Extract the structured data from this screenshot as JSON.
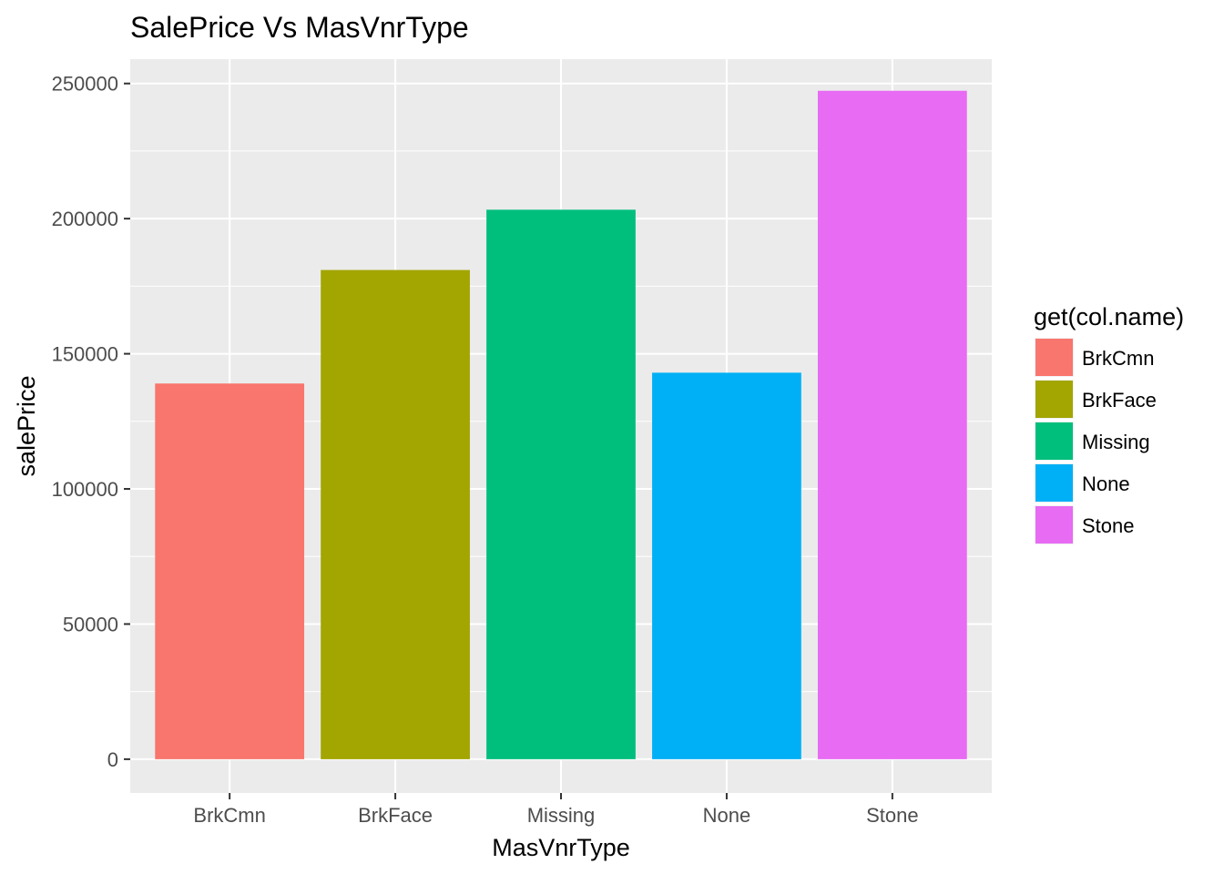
{
  "chart_data": {
    "type": "bar",
    "title": "SalePrice Vs MasVnrType",
    "xlabel": "MasVnrType",
    "ylabel": "salePrice",
    "categories": [
      "BrkCmn",
      "BrkFace",
      "Missing",
      "None",
      "Stone"
    ],
    "values": [
      139000,
      181000,
      203300,
      143000,
      247300
    ],
    "colors": [
      "#F8766D",
      "#A3A500",
      "#00BF7D",
      "#00B0F6",
      "#E76BF3"
    ],
    "ylim": [
      -12500,
      259000
    ],
    "yticks": [
      0,
      50000,
      100000,
      150000,
      200000,
      250000
    ],
    "ytick_labels": [
      "0",
      "50000",
      "100000",
      "150000",
      "200000",
      "250000"
    ],
    "grid": true,
    "legend": {
      "title": "get(col.name)",
      "position": "right",
      "entries": [
        "BrkCmn",
        "BrkFace",
        "Missing",
        "None",
        "Stone"
      ]
    }
  }
}
